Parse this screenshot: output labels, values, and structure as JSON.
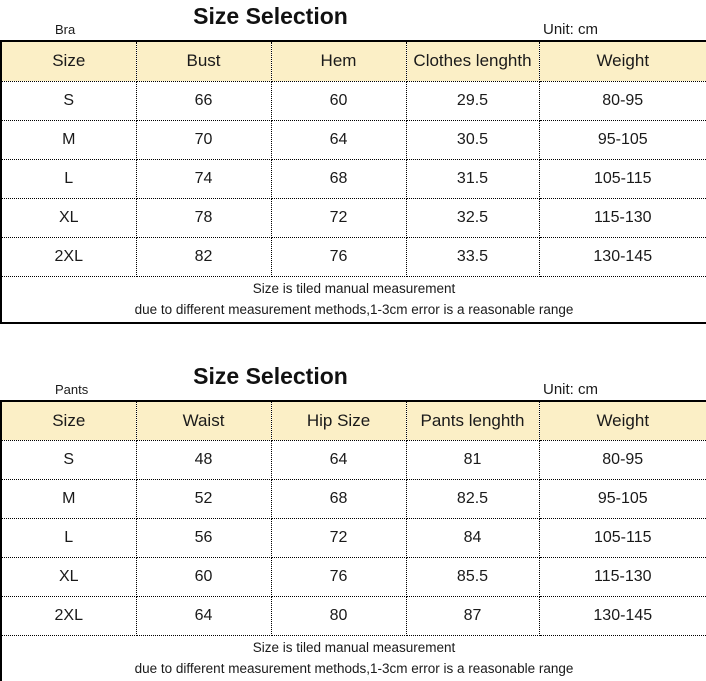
{
  "page": {
    "background_color": "#ffffff",
    "text_color": "#1a1a1a",
    "header_fill_color": "#fbefc6",
    "border_color": "#000000"
  },
  "tables": [
    {
      "label": "Bra",
      "title": "Size Selection",
      "unit": "Unit: cm",
      "columns": [
        "Size",
        "Bust",
        "Hem",
        "Clothes lenghth",
        "Weight"
      ],
      "rows": [
        [
          "S",
          "66",
          "60",
          "29.5",
          "80-95"
        ],
        [
          "M",
          "70",
          "64",
          "30.5",
          "95-105"
        ],
        [
          "L",
          "74",
          "68",
          "31.5",
          "105-115"
        ],
        [
          "XL",
          "78",
          "72",
          "32.5",
          "115-130"
        ],
        [
          "2XL",
          "82",
          "76",
          "33.5",
          "130-145"
        ]
      ],
      "footnotes": [
        "Size is tiled manual measurement",
        "due to different measurement methods,1-3cm error is a reasonable range"
      ]
    },
    {
      "label": "Pants",
      "title": "Size Selection",
      "unit": "Unit: cm",
      "columns": [
        "Size",
        "Waist",
        "Hip Size",
        "Pants lenghth",
        "Weight"
      ],
      "rows": [
        [
          "S",
          "48",
          "64",
          "81",
          "80-95"
        ],
        [
          "M",
          "52",
          "68",
          "82.5",
          "95-105"
        ],
        [
          "L",
          "56",
          "72",
          "84",
          "105-115"
        ],
        [
          "XL",
          "60",
          "76",
          "85.5",
          "115-130"
        ],
        [
          "2XL",
          "64",
          "80",
          "87",
          "130-145"
        ]
      ],
      "footnotes": [
        "Size is tiled manual measurement",
        "due to different measurement methods,1-3cm error is a reasonable range"
      ]
    }
  ]
}
